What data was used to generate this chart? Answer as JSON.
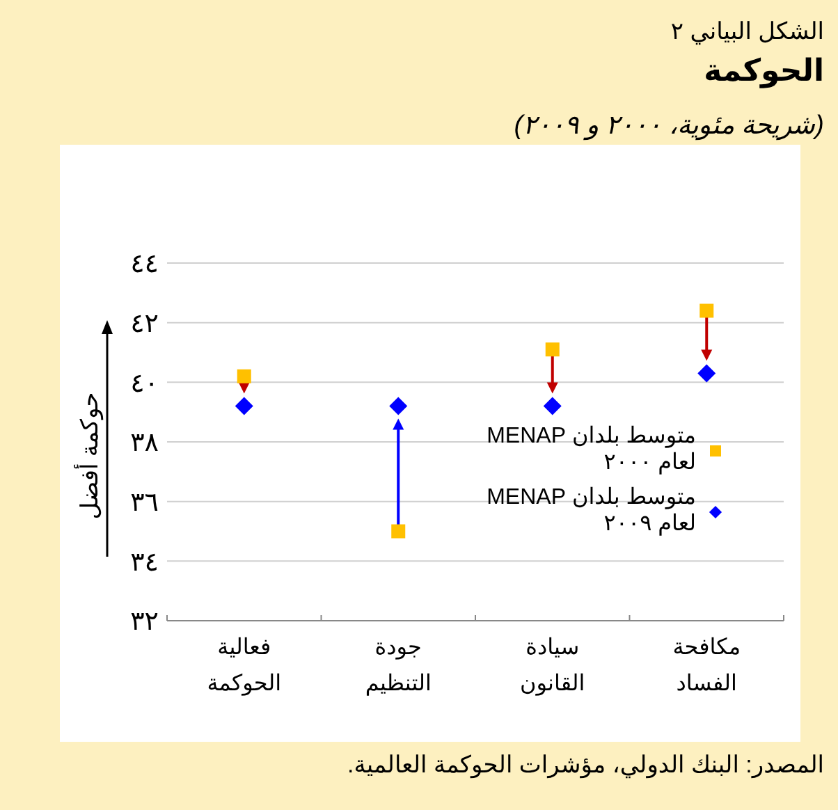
{
  "chart_data": {
    "type": "scatter",
    "title": "الحوكمة",
    "subtitle": "(شريحة مئوية، ٢٠٠٠ و ٢٠٠٩)",
    "ylabel": "حوكمة أفضل",
    "annotations": [
      "الشكل البياني ٢",
      "المصدر: البنك الدولي، مؤشرات الحوكمة العالمية."
    ],
    "categories": [
      "فعالية\nالحوكمة",
      "جودة\nالتنظيم",
      "سيادة\nالقانون",
      "مكافحة\nالفساد"
    ],
    "series": [
      {
        "name": "متوسط بلدان MENAP\nلعام ٢٠٠٠",
        "color": "#ffc000",
        "marker": "square",
        "values": [
          40.2,
          35.0,
          41.1,
          42.4
        ]
      },
      {
        "name": "متوسط بلدان MENAP\nلعام ٢٠٠٩",
        "color": "#0000ff",
        "marker": "diamond",
        "values": [
          39.2,
          39.2,
          39.2,
          40.3
        ]
      }
    ],
    "ylim": [
      32,
      44
    ],
    "yticks": [
      {
        "value": 32,
        "label": "٣٢"
      },
      {
        "value": 34,
        "label": "٣٤"
      },
      {
        "value": 36,
        "label": "٣٦"
      },
      {
        "value": 38,
        "label": "٣٨"
      },
      {
        "value": 40,
        "label": "٤٠"
      },
      {
        "value": 42,
        "label": "٤٢"
      },
      {
        "value": 44,
        "label": "٤٤"
      }
    ],
    "grid": "y",
    "legend": "right"
  }
}
